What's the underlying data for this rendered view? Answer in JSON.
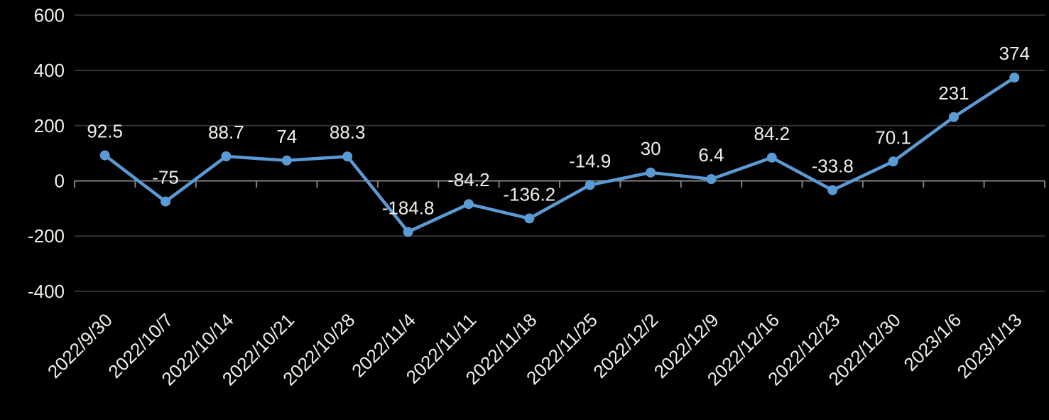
{
  "chart_data": {
    "type": "line",
    "title": "",
    "xlabel": "",
    "ylabel": "",
    "categories": [
      "2022/9/30",
      "2022/10/7",
      "2022/10/14",
      "2022/10/21",
      "2022/10/28",
      "2022/11/4",
      "2022/11/11",
      "2022/11/18",
      "2022/11/25",
      "2022/12/2",
      "2022/12/9",
      "2022/12/16",
      "2022/12/23",
      "2022/12/30",
      "2023/1/6",
      "2023/1/13"
    ],
    "values": [
      92.5,
      -75,
      88.7,
      74,
      88.3,
      -184.8,
      -84.2,
      -136.2,
      -14.9,
      30,
      6.4,
      84.2,
      -33.8,
      70.1,
      231,
      374
    ],
    "data_labels": [
      "92.5",
      "-75",
      "88.7",
      "74",
      "88.3",
      "-184.8",
      "-84.2",
      "-136.2",
      "-14.9",
      "30",
      "6.4",
      "84.2",
      "-33.8",
      "70.1",
      "231",
      "374"
    ],
    "y_ticks": [
      600,
      400,
      200,
      0,
      -200,
      -400
    ],
    "ylim": [
      -400,
      600
    ],
    "grid": true,
    "legend": "none",
    "marker": "circle",
    "x_label_rotation_deg": -45,
    "colors": {
      "series_line": "#5B9BD5",
      "marker_fill": "#5B9BD5",
      "background": "#000000",
      "label_text": "#F0EEE8",
      "gridline": "#333333",
      "axis_line": "#7F7F7F"
    }
  }
}
